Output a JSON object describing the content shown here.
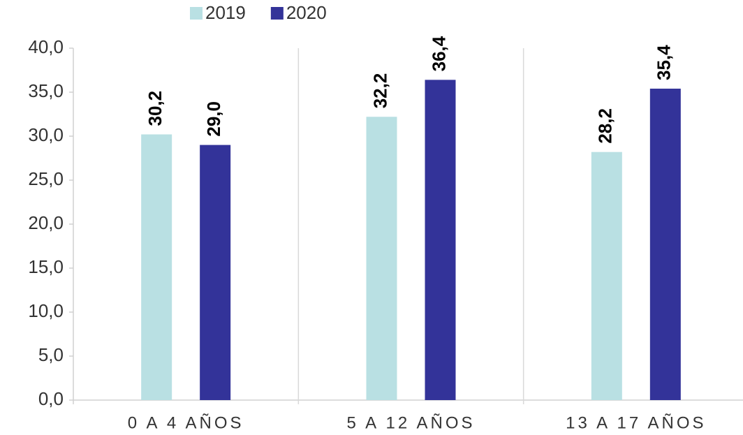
{
  "chart_data": {
    "type": "bar",
    "categories": [
      "0 A 4 AÑOS",
      "5 A 12 AÑOS",
      "13 A 17 AÑOS"
    ],
    "series": [
      {
        "name": "2019",
        "color": "#b9e0e3",
        "values": [
          30.2,
          32.2,
          28.2
        ],
        "value_labels": [
          "30,2",
          "32,2",
          "28,2"
        ]
      },
      {
        "name": "2020",
        "color": "#333399",
        "values": [
          29.0,
          36.4,
          35.4
        ],
        "value_labels": [
          "29,0",
          "36,4",
          "35,4"
        ]
      }
    ],
    "ylim": [
      0,
      40
    ],
    "yticks": [
      {
        "value": 0,
        "label": "0,0"
      },
      {
        "value": 5,
        "label": "5,0"
      },
      {
        "value": 10,
        "label": "10,0"
      },
      {
        "value": 15,
        "label": "15,0"
      },
      {
        "value": 20,
        "label": "20,0"
      },
      {
        "value": 25,
        "label": "25,0"
      },
      {
        "value": 30,
        "label": "30,0"
      },
      {
        "value": 35,
        "label": "35,0"
      },
      {
        "value": 40,
        "label": "40,0"
      }
    ],
    "legend": "top"
  }
}
